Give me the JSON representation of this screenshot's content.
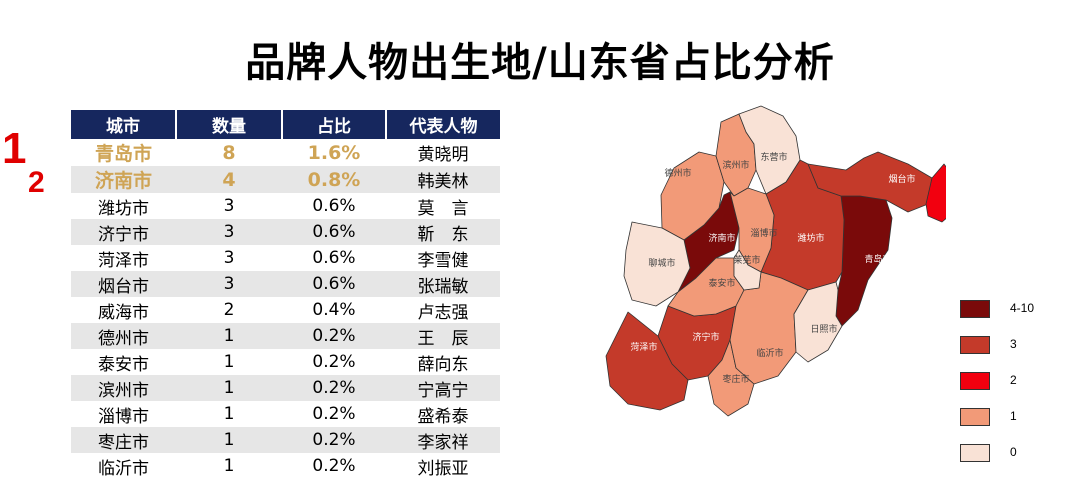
{
  "title": "品牌人物出生地/山东省占比分析",
  "ranks": [
    "1",
    "2"
  ],
  "table": {
    "headers": [
      "城市",
      "数量",
      "占比",
      "代表人物"
    ],
    "rows": [
      {
        "city": "青岛市",
        "count": "8",
        "pct": "1.6%",
        "person": "黄晓明"
      },
      {
        "city": "济南市",
        "count": "4",
        "pct": "0.8%",
        "person": "韩美林"
      },
      {
        "city": "潍坊市",
        "count": "3",
        "pct": "0.6%",
        "person": "莫　言"
      },
      {
        "city": "济宁市",
        "count": "3",
        "pct": "0.6%",
        "person": "靳　东"
      },
      {
        "city": "菏泽市",
        "count": "3",
        "pct": "0.6%",
        "person": "李雪健"
      },
      {
        "city": "烟台市",
        "count": "3",
        "pct": "0.6%",
        "person": "张瑞敏"
      },
      {
        "city": "威海市",
        "count": "2",
        "pct": "0.4%",
        "person": "卢志强"
      },
      {
        "city": "德州市",
        "count": "1",
        "pct": "0.2%",
        "person": "王　辰"
      },
      {
        "city": "泰安市",
        "count": "1",
        "pct": "0.2%",
        "person": "薛向东"
      },
      {
        "city": "滨州市",
        "count": "1",
        "pct": "0.2%",
        "person": "宁高宁"
      },
      {
        "city": "淄博市",
        "count": "1",
        "pct": "0.2%",
        "person": "盛希泰"
      },
      {
        "city": "枣庄市",
        "count": "1",
        "pct": "0.2%",
        "person": "李家祥"
      },
      {
        "city": "临沂市",
        "count": "1",
        "pct": "0.2%",
        "person": "刘振亚"
      }
    ]
  },
  "chart_data": {
    "type": "heatmap",
    "regions": [
      {
        "name": "青岛市",
        "value": 8,
        "bin": "4-10"
      },
      {
        "name": "济南市",
        "value": 4,
        "bin": "4-10"
      },
      {
        "name": "潍坊市",
        "value": 3,
        "bin": "3"
      },
      {
        "name": "济宁市",
        "value": 3,
        "bin": "3"
      },
      {
        "name": "菏泽市",
        "value": 3,
        "bin": "3"
      },
      {
        "name": "烟台市",
        "value": 3,
        "bin": "3"
      },
      {
        "name": "威海市",
        "value": 2,
        "bin": "2"
      },
      {
        "name": "德州市",
        "value": 1,
        "bin": "1"
      },
      {
        "name": "泰安市",
        "value": 1,
        "bin": "1"
      },
      {
        "name": "滨州市",
        "value": 1,
        "bin": "1"
      },
      {
        "name": "淄博市",
        "value": 1,
        "bin": "1"
      },
      {
        "name": "枣庄市",
        "value": 1,
        "bin": "1"
      },
      {
        "name": "临沂市",
        "value": 1,
        "bin": "1"
      },
      {
        "name": "东营市",
        "value": 0,
        "bin": "0"
      },
      {
        "name": "聊城市",
        "value": 0,
        "bin": "0"
      },
      {
        "name": "莱芜市",
        "value": 0,
        "bin": "0"
      },
      {
        "name": "日照市",
        "value": 0,
        "bin": "0"
      }
    ],
    "legend": [
      {
        "label": "4-10",
        "color": "#7a0a0a"
      },
      {
        "label": "3",
        "color": "#c43a2a"
      },
      {
        "label": "2",
        "color": "#f2000f"
      },
      {
        "label": "1",
        "color": "#f29a78"
      },
      {
        "label": "0",
        "color": "#f9e2d6"
      }
    ],
    "legend_position": "bottom-right"
  }
}
